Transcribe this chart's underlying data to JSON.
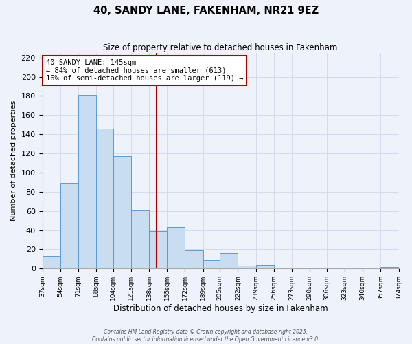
{
  "title": "40, SANDY LANE, FAKENHAM, NR21 9EZ",
  "subtitle": "Size of property relative to detached houses in Fakenham",
  "xlabel": "Distribution of detached houses by size in Fakenham",
  "ylabel": "Number of detached properties",
  "bar_edges": [
    37,
    54,
    71,
    88,
    104,
    121,
    138,
    155,
    172,
    189,
    205,
    222,
    239,
    256,
    273,
    290,
    306,
    323,
    340,
    357,
    374
  ],
  "bar_heights": [
    13,
    89,
    181,
    146,
    117,
    61,
    39,
    43,
    19,
    9,
    16,
    3,
    4,
    0,
    0,
    0,
    0,
    0,
    0,
    2
  ],
  "bar_color": "#c8ddf0",
  "bar_edge_color": "#5b9bd5",
  "grid_color": "#d0d8e8",
  "bg_color": "#eef2fb",
  "vline_x": 145,
  "vline_color": "#aa0000",
  "annotation_text": "40 SANDY LANE: 145sqm\n← 84% of detached houses are smaller (613)\n16% of semi-detached houses are larger (119) →",
  "annotation_box_color": "#ffffff",
  "annotation_box_edge": "#aa0000",
  "ylim": [
    0,
    225
  ],
  "yticks": [
    0,
    20,
    40,
    60,
    80,
    100,
    120,
    140,
    160,
    180,
    200,
    220
  ],
  "tick_labels": [
    "37sqm",
    "54sqm",
    "71sqm",
    "88sqm",
    "104sqm",
    "121sqm",
    "138sqm",
    "155sqm",
    "172sqm",
    "189sqm",
    "205sqm",
    "222sqm",
    "239sqm",
    "256sqm",
    "273sqm",
    "290sqm",
    "306sqm",
    "323sqm",
    "340sqm",
    "357sqm",
    "374sqm"
  ],
  "footer1": "Contains HM Land Registry data © Crown copyright and database right 2025.",
  "footer2": "Contains public sector information licensed under the Open Government Licence v3.0."
}
